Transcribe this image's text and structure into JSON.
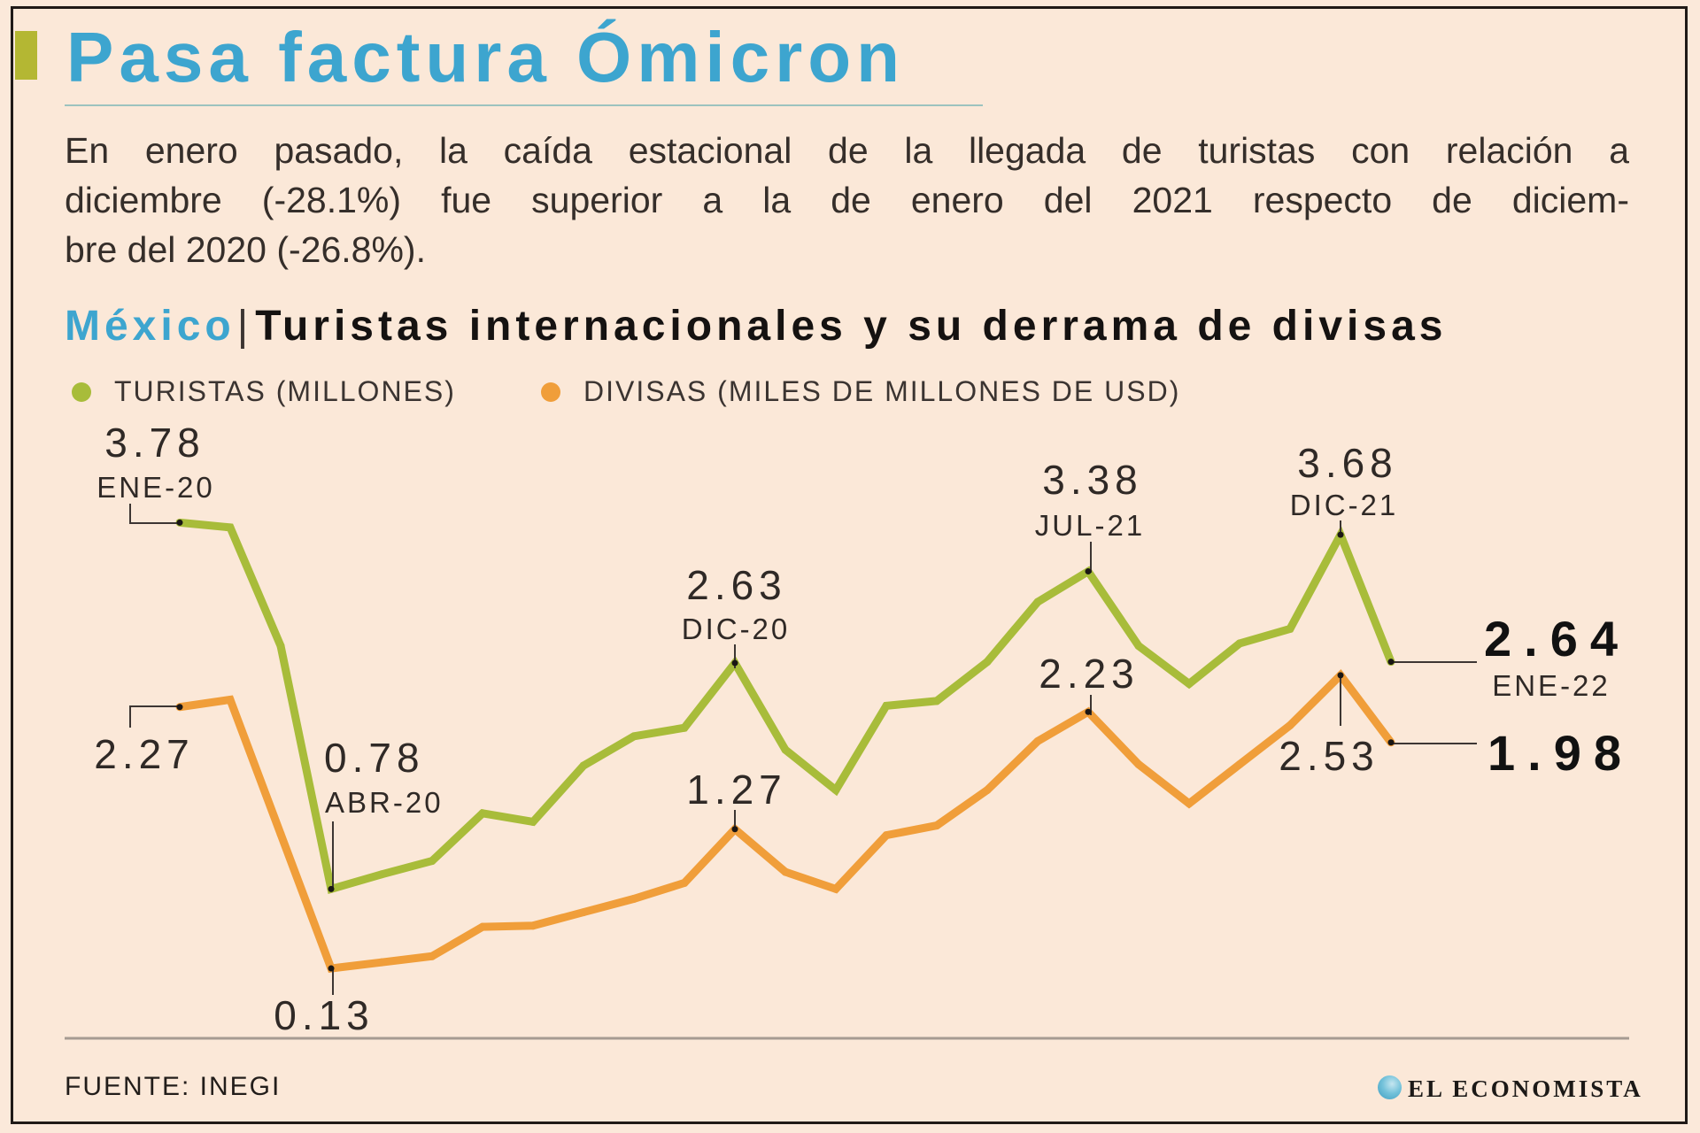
{
  "header": {
    "title": "Pasa factura Ómicron",
    "intro_lines": [
      "En enero pasado, la caída estacional de la llegada de turistas con relación a",
      "diciembre (-28.1%) fue superior a la de enero del 2021 respecto de diciem-",
      "bre del 2020 (-26.8%)."
    ]
  },
  "subtitle": {
    "country": "México",
    "separator": "|"
  },
  "colors": {
    "title": "#3da5cf",
    "accent": "#b4b733",
    "turistas": "#a8bc3a",
    "divisas": "#f09e3a",
    "background": "#fbe8d8"
  },
  "chart_data": {
    "type": "line",
    "title": "Turistas internacionales y su derrama de divisas",
    "x": [
      0,
      1,
      2,
      3,
      4,
      5,
      6,
      7,
      8,
      9,
      10,
      11,
      12,
      13,
      14,
      15,
      16,
      17,
      18,
      19,
      20,
      21,
      22,
      23,
      24
    ],
    "ylim": [
      0,
      4
    ],
    "grid": false,
    "legend_position": "top-left",
    "series": [
      {
        "id": "turistas",
        "name": "TURISTAS (MILLONES)",
        "color": "#a8bc3a",
        "values": [
          3.78,
          3.74,
          2.77,
          0.78,
          0.9,
          1.01,
          1.4,
          1.33,
          1.79,
          2.03,
          2.1,
          2.63,
          1.92,
          1.59,
          2.28,
          2.32,
          2.64,
          3.13,
          3.38,
          2.77,
          2.46,
          2.79,
          2.91,
          3.68,
          2.64
        ]
      },
      {
        "id": "divisas",
        "name": "DIVISAS (MILES DE MILLONES DE USD)",
        "color": "#f09e3a",
        "values": [
          2.27,
          2.33,
          1.23,
          0.13,
          0.18,
          0.23,
          0.47,
          0.48,
          0.59,
          0.7,
          0.83,
          1.27,
          0.92,
          0.78,
          1.22,
          1.3,
          1.59,
          1.99,
          2.23,
          1.8,
          1.48,
          1.8,
          2.12,
          2.53,
          1.98
        ]
      }
    ],
    "annotations": [
      {
        "series": "turistas",
        "index": 0,
        "value": "3.78",
        "date": "ENE-20"
      },
      {
        "series": "divisas",
        "index": 0,
        "value": "2.27"
      },
      {
        "series": "turistas",
        "index": 3,
        "value": "0.78",
        "date": "ABR-20"
      },
      {
        "series": "divisas",
        "index": 3,
        "value": "0.13"
      },
      {
        "series": "turistas",
        "index": 11,
        "value": "2.63",
        "date": "DIC-20"
      },
      {
        "series": "divisas",
        "index": 11,
        "value": "1.27"
      },
      {
        "series": "turistas",
        "index": 18,
        "value": "3.38",
        "date": "JUL-21"
      },
      {
        "series": "divisas",
        "index": 18,
        "value": "2.23"
      },
      {
        "series": "turistas",
        "index": 23,
        "value": "3.68",
        "date": "DIC-21"
      },
      {
        "series": "divisas",
        "index": 23,
        "value": "2.53"
      },
      {
        "series": "turistas",
        "index": 24,
        "value": "2.64",
        "date": "ENE-22",
        "highlight": true
      },
      {
        "series": "divisas",
        "index": 24,
        "value": "1.98",
        "highlight": true
      }
    ]
  },
  "footer": {
    "source": "FUENTE: INEGI",
    "brand": "EL ECONOMISTA"
  }
}
